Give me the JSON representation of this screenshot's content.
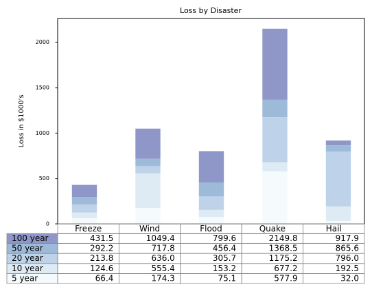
{
  "chart_data": {
    "type": "bar",
    "title": "Loss by Disaster",
    "ylabel": "Loss in $1000's",
    "categories": [
      "Freeze",
      "Wind",
      "Flood",
      "Quake",
      "Hail"
    ],
    "series": [
      {
        "name": "100 year",
        "color": "#8f96c8",
        "values": [
          139.3,
          331.6,
          343.2,
          781.3,
          52.3
        ]
      },
      {
        "name": "50 year",
        "color": "#9dbad9",
        "values": [
          78.4,
          81.8,
          150.7,
          193.3,
          69.6
        ]
      },
      {
        "name": "20 year",
        "color": "#bed3ea",
        "values": [
          89.2,
          80.6,
          152.5,
          498.0,
          603.5
        ]
      },
      {
        "name": "10 year",
        "color": "#deebf4",
        "values": [
          58.2,
          381.1,
          78.1,
          99.3,
          160.5
        ]
      },
      {
        "name": "5 year",
        "color": "#f5fbfc",
        "values": [
          66.4,
          174.3,
          75.1,
          577.9,
          32.0
        ]
      }
    ],
    "table": [
      [
        "431.5",
        "1049.4",
        "799.6",
        "2149.8",
        "917.9"
      ],
      [
        "292.2",
        "717.8",
        "456.4",
        "1368.5",
        "865.6"
      ],
      [
        "213.8",
        "636.0",
        "305.7",
        "1175.2",
        "796.0"
      ],
      [
        "124.6",
        "555.4",
        "153.2",
        "677.2",
        "192.5"
      ],
      [
        "66.4",
        "174.3",
        "75.1",
        "577.9",
        "32.0"
      ]
    ],
    "ylim": [
      0,
      2262
    ],
    "yticks": [
      0,
      500,
      1000,
      1500,
      2000
    ]
  }
}
